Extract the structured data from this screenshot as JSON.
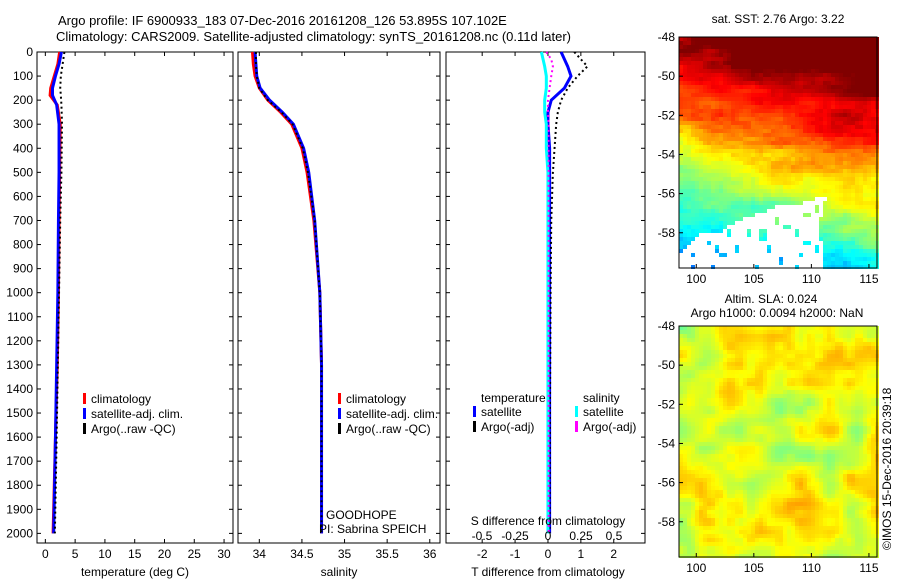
{
  "header": {
    "line1": "Argo profile: IF 6900933_183 07-Dec-2016 20161208_126 53.895S 107.102E",
    "line2": "Climatology: CARS2009. Satellite-adjusted climatology: synTS_20161208.nc (0.11d later)"
  },
  "chart_data": [
    {
      "type": "line",
      "id": "temperature",
      "xlabel": "temperature (deg C)",
      "ylabel": "",
      "xlim": [
        -1.4,
        31.5
      ],
      "ylim": [
        2040,
        0
      ],
      "xticks": [
        0,
        5,
        10,
        15,
        20,
        25,
        30
      ],
      "yticks": [
        0,
        100,
        200,
        300,
        400,
        500,
        600,
        700,
        800,
        900,
        1000,
        1100,
        1200,
        1300,
        1400,
        1500,
        1600,
        1700,
        1800,
        1900,
        2000
      ],
      "depth": [
        0,
        50,
        100,
        150,
        180,
        220,
        300,
        500,
        700,
        1000,
        1300,
        1600,
        2000
      ],
      "series": [
        {
          "name": "climatology",
          "color": "#ff0000",
          "values": [
            2.4,
            2.1,
            1.5,
            0.9,
            0.8,
            2.0,
            2.5,
            2.4,
            2.3,
            2.2,
            2.0,
            1.7,
            1.3
          ]
        },
        {
          "name": "satellite-adj. clim.",
          "color": "#0000ff",
          "values": [
            2.7,
            2.3,
            1.7,
            1.2,
            1.2,
            1.9,
            2.3,
            2.3,
            2.2,
            2.1,
            1.9,
            1.7,
            1.4
          ]
        },
        {
          "name": "Argo(..raw -QC)",
          "color": "#000000",
          "dashed": true,
          "values": [
            3.2,
            2.9,
            2.6,
            2.5,
            2.6,
            2.7,
            2.8,
            2.7,
            2.5,
            2.3,
            2.1,
            1.9,
            1.6
          ]
        }
      ],
      "annotations": []
    },
    {
      "type": "line",
      "id": "salinity",
      "xlabel": "salinity",
      "xlim": [
        33.75,
        36.12
      ],
      "ylim": [
        2040,
        0
      ],
      "xticks": [
        34,
        34.5,
        35,
        35.5,
        36
      ],
      "depth": [
        0,
        50,
        100,
        150,
        200,
        250,
        300,
        400,
        500,
        700,
        1000,
        1300,
        1600,
        2000
      ],
      "series": [
        {
          "name": "climatology",
          "color": "#ff0000",
          "values": [
            33.92,
            33.93,
            33.95,
            34.0,
            34.1,
            34.25,
            34.38,
            34.5,
            34.56,
            34.64,
            34.71,
            34.73,
            34.73,
            34.73
          ]
        },
        {
          "name": "satellite-adj. clim.",
          "color": "#0000ff",
          "values": [
            33.95,
            33.96,
            33.97,
            34.01,
            34.12,
            34.27,
            34.4,
            34.52,
            34.58,
            34.65,
            34.71,
            34.73,
            34.73,
            34.73
          ]
        },
        {
          "name": "Argo(..raw -QC)",
          "color": "#000000",
          "dashed": true,
          "values": [
            33.96,
            33.96,
            33.97,
            34.0,
            34.1,
            34.26,
            34.39,
            34.51,
            34.57,
            34.65,
            34.71,
            34.73,
            34.73,
            34.73
          ]
        }
      ],
      "annotations": [
        "GOODHOPE",
        "PI: Sabrina SPEICH"
      ]
    },
    {
      "type": "line",
      "id": "difference",
      "xlabel": "T difference from climatology",
      "x2label": "S difference from climatology",
      "xlim": [
        -3.1,
        2.95
      ],
      "ylim": [
        2040,
        0
      ],
      "xticks": [
        -2,
        -1,
        0,
        1,
        2
      ],
      "x2ticks": [
        -0.5,
        -0.25,
        0,
        0.25,
        0.5
      ],
      "legend_titles": [
        "temperature",
        "salinity"
      ],
      "depth": [
        0,
        30,
        60,
        100,
        150,
        200,
        250,
        300,
        400,
        500,
        700,
        1000,
        1500,
        2000
      ],
      "series": [
        {
          "name": "satellite",
          "group": "temperature",
          "color": "#0000ff",
          "values": [
            0.4,
            0.5,
            0.6,
            0.7,
            0.5,
            0.1,
            0.0,
            0.0,
            0.05,
            0.05,
            0.05,
            0.05,
            0.05,
            0.05
          ]
        },
        {
          "name": "Argo(-adj)",
          "group": "temperature",
          "color": "#000000",
          "dashed": true,
          "values": [
            0.8,
            1.0,
            1.2,
            0.9,
            0.6,
            0.4,
            0.3,
            0.25,
            0.2,
            0.15,
            0.1,
            0.08,
            0.06,
            0.05
          ]
        },
        {
          "name": "satellite",
          "group": "salinity",
          "color": "#00ffff",
          "values": [
            -0.2,
            -0.15,
            -0.1,
            -0.05,
            -0.05,
            -0.1,
            -0.1,
            -0.05,
            -0.05,
            0,
            0,
            0,
            0,
            0
          ]
        },
        {
          "name": "Argo(-adj)",
          "group": "salinity",
          "color": "#ff00ff",
          "dashed": true,
          "values": [
            -0.05,
            0.1,
            0.15,
            0.1,
            0.05,
            0.0,
            0.0,
            0.02,
            0.02,
            0.02,
            0.02,
            0.02,
            0.02,
            0.02
          ]
        }
      ]
    },
    {
      "type": "heatmap",
      "id": "sst-map",
      "title": "sat. SST: 2.76 Argo: 3.22",
      "xlim": [
        98.5,
        115.7
      ],
      "ylim": [
        -59.8,
        -48
      ],
      "xticks": [
        100,
        105,
        110,
        115
      ],
      "yticks": [
        -48,
        -50,
        -52,
        -54,
        -56,
        -58
      ]
    },
    {
      "type": "heatmap",
      "id": "sla-map",
      "title": "Altim. SLA: 0.024",
      "subtitle": "Argo h1000: 0.0094 h2000: NaN",
      "xlim": [
        98.5,
        115.7
      ],
      "ylim": [
        -59.8,
        -48
      ],
      "xticks": [
        100,
        105,
        110,
        115
      ],
      "yticks": [
        -48,
        -50,
        -52,
        -54,
        -56,
        -58
      ],
      "credit": "©IMOS 15-Dec-2016 20:39:18"
    }
  ]
}
